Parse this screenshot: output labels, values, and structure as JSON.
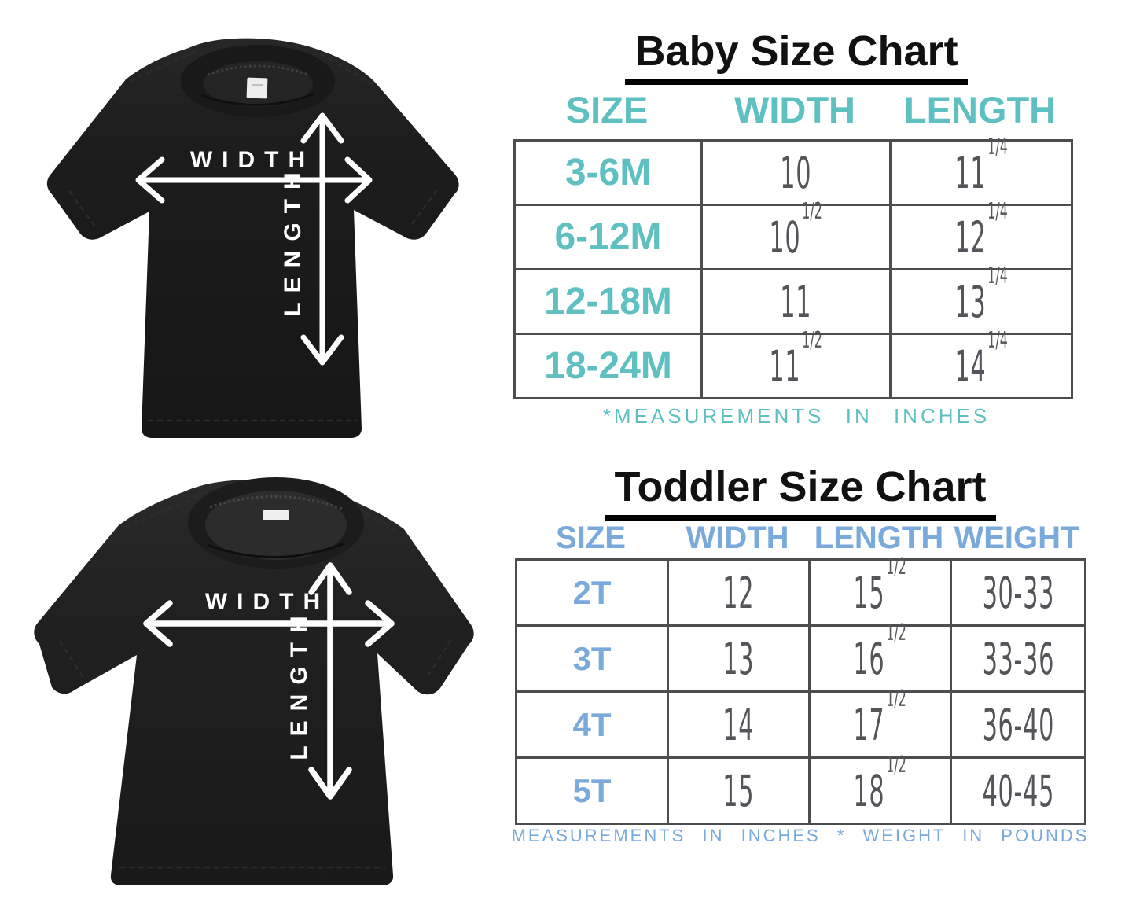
{
  "colors": {
    "teal": "#5fc0c1",
    "blue": "#7aa9dc",
    "table_border": "#4c4d4f",
    "number_gray": "#54555a",
    "title_black": "#111111",
    "shirt_black": "#1d1d1d",
    "background": "#ffffff",
    "arrow_white": "#ffffff"
  },
  "chart_data": [
    {
      "type": "table",
      "title": "Baby Size Chart",
      "columns": [
        "SIZE",
        "WIDTH",
        "LENGTH"
      ],
      "rows": [
        [
          "3-6M",
          "10",
          "11 1/4"
        ],
        [
          "6-12M",
          "10 1/2",
          "12 1/4"
        ],
        [
          "12-18M",
          "11",
          "13 1/4"
        ],
        [
          "18-24M",
          "11 1/2",
          "14 1/4"
        ]
      ],
      "footnote": "*MEASUREMENTS IN INCHES",
      "accent_color": "#5fc0c1"
    },
    {
      "type": "table",
      "title": "Toddler Size Chart",
      "columns": [
        "SIZE",
        "WIDTH",
        "LENGTH",
        "WEIGHT"
      ],
      "rows": [
        [
          "2T",
          "12",
          "15 1/2",
          "30-33"
        ],
        [
          "3T",
          "13",
          "16 1/2",
          "33-36"
        ],
        [
          "4T",
          "14",
          "17 1/2",
          "36-40"
        ],
        [
          "5T",
          "15",
          "18 1/2",
          "40-45"
        ]
      ],
      "footnote": "MEASUREMENTS IN INCHES * WEIGHT IN POUNDS",
      "accent_color": "#7aa9dc"
    }
  ],
  "shirts": {
    "baby": {
      "width_label": "WIDTH",
      "length_label": "LENGTH"
    },
    "toddler": {
      "width_label": "WIDTH",
      "length_label": "LENGTH"
    }
  }
}
